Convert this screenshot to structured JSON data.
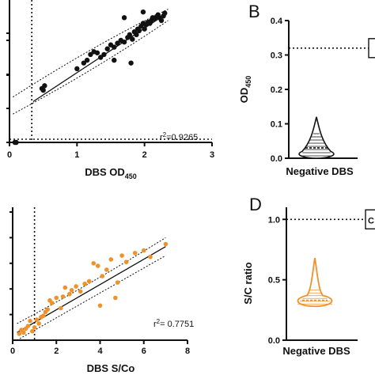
{
  "chart_data": [
    {
      "panel": "A",
      "type": "scatter",
      "xlabel": "DBS OD450",
      "xlabel_main": "DBS OD",
      "xlabel_sub": "450",
      "ylabel": "",
      "xlim": [
        0,
        3
      ],
      "ylim": [
        0,
        2.4
      ],
      "xticks": [
        "0",
        "1",
        "2",
        "3"
      ],
      "color": "#111111",
      "annotation_r": "r",
      "annotation_exp": "2",
      "annotation_val": "=0.9265",
      "vline_x": 0.33,
      "hline_y": 0.05,
      "fit": {
        "x": [
          0.35,
          2.3
        ],
        "y": [
          0.72,
          2.25
        ]
      },
      "points": [
        [
          0.08,
          0.0
        ],
        [
          0.1,
          0.0
        ],
        [
          0.48,
          0.95
        ],
        [
          0.5,
          0.92
        ],
        [
          0.52,
          1.0
        ],
        [
          1.0,
          1.3
        ],
        [
          1.1,
          1.4
        ],
        [
          1.15,
          1.45
        ],
        [
          1.2,
          1.55
        ],
        [
          1.25,
          1.6
        ],
        [
          1.3,
          1.58
        ],
        [
          1.4,
          1.55
        ],
        [
          1.45,
          1.65
        ],
        [
          1.5,
          1.72
        ],
        [
          1.55,
          1.68
        ],
        [
          1.6,
          1.75
        ],
        [
          1.65,
          1.8
        ],
        [
          1.7,
          1.77
        ],
        [
          1.75,
          1.85
        ],
        [
          1.78,
          1.9
        ],
        [
          1.8,
          1.4
        ],
        [
          1.82,
          1.82
        ],
        [
          1.85,
          1.95
        ],
        [
          1.88,
          1.9
        ],
        [
          1.9,
          2.0
        ],
        [
          1.92,
          1.97
        ],
        [
          1.95,
          2.05
        ],
        [
          1.98,
          2.1
        ],
        [
          2.0,
          2.0
        ],
        [
          2.02,
          2.08
        ],
        [
          2.05,
          2.12
        ],
        [
          2.08,
          2.1
        ],
        [
          2.1,
          2.15
        ],
        [
          2.12,
          2.2
        ],
        [
          2.15,
          2.18
        ],
        [
          2.18,
          2.22
        ],
        [
          2.2,
          2.25
        ],
        [
          2.22,
          2.2
        ],
        [
          2.25,
          2.15
        ],
        [
          2.28,
          2.23
        ],
        [
          2.3,
          2.28
        ],
        [
          1.98,
          2.3
        ],
        [
          1.7,
          2.2
        ],
        [
          1.55,
          1.45
        ],
        [
          1.35,
          1.5
        ]
      ]
    },
    {
      "panel": "B",
      "type": "violin",
      "ylabel": "OD450",
      "ylabel_main": "OD",
      "ylabel_sub": "450",
      "xlabel": "Negative DBS",
      "ylim": [
        0,
        0.4
      ],
      "yticks": [
        "0.0",
        "0.1",
        "0.2",
        "0.3",
        "0.4"
      ],
      "yticks_values": [
        0,
        0.1,
        0.2,
        0.3,
        0.4
      ],
      "color": "#111111",
      "cutoff": 0.32,
      "violin_range": [
        0.0,
        0.12
      ],
      "median": 0.03
    },
    {
      "panel": "C",
      "type": "scatter",
      "xlabel": "DBS S/Co",
      "ylabel": "",
      "xlim": [
        0,
        8
      ],
      "ylim": [
        0,
        10
      ],
      "xticks": [
        "0",
        "2",
        "4",
        "6",
        "8"
      ],
      "xticks_values": [
        0,
        2,
        4,
        6,
        8
      ],
      "color": "#f0922b",
      "annotation_r": "r",
      "annotation_exp": "2",
      "annotation_val": "= 0.7751",
      "vline_x": 1.0,
      "fit": {
        "x": [
          0.2,
          7.0
        ],
        "y": [
          0.6,
          7.3
        ]
      },
      "points": [
        [
          0.3,
          0.5
        ],
        [
          0.4,
          0.8
        ],
        [
          0.5,
          0.6
        ],
        [
          0.6,
          0.9
        ],
        [
          0.7,
          1.1
        ],
        [
          0.8,
          1.5
        ],
        [
          0.9,
          0.7
        ],
        [
          1.0,
          1.0
        ],
        [
          1.1,
          1.6
        ],
        [
          1.2,
          1.3
        ],
        [
          1.3,
          1.8
        ],
        [
          1.4,
          1.9
        ],
        [
          1.5,
          2.2
        ],
        [
          1.6,
          2.4
        ],
        [
          1.7,
          3.1
        ],
        [
          1.8,
          2.9
        ],
        [
          2.0,
          3.3
        ],
        [
          2.2,
          2.5
        ],
        [
          2.3,
          3.4
        ],
        [
          2.4,
          4.1
        ],
        [
          2.6,
          3.6
        ],
        [
          2.7,
          3.9
        ],
        [
          2.9,
          4.2
        ],
        [
          3.1,
          3.8
        ],
        [
          3.3,
          4.4
        ],
        [
          3.5,
          4.6
        ],
        [
          3.7,
          6.0
        ],
        [
          3.9,
          5.8
        ],
        [
          4.1,
          5.0
        ],
        [
          4.3,
          5.5
        ],
        [
          4.5,
          6.3
        ],
        [
          4.7,
          3.3
        ],
        [
          4.8,
          4.5
        ],
        [
          5.0,
          6.6
        ],
        [
          5.2,
          6.1
        ],
        [
          5.6,
          6.8
        ],
        [
          6.0,
          7.0
        ],
        [
          6.3,
          6.5
        ],
        [
          7.0,
          7.5
        ],
        [
          4.0,
          2.7
        ]
      ]
    },
    {
      "panel": "D",
      "type": "violin",
      "ylabel": "S/C ratio",
      "xlabel": "Negative DBS",
      "ylim": [
        0,
        1.1
      ],
      "yticks": [
        "0.0",
        "0.5",
        "1.0"
      ],
      "yticks_values": [
        0,
        0.5,
        1.0
      ],
      "color": "#f0922b",
      "cutoff": 1.0,
      "violin_range": [
        0.28,
        0.68
      ],
      "median": 0.33
    }
  ]
}
